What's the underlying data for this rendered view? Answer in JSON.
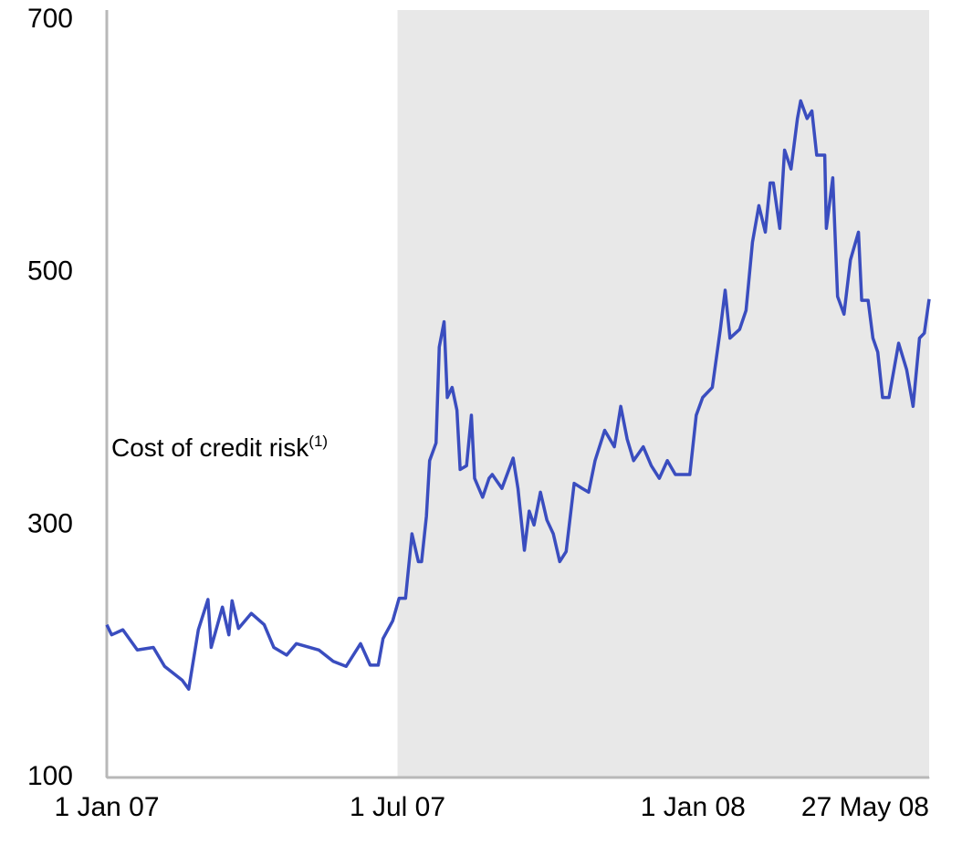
{
  "chart_data": {
    "type": "line",
    "annotation": {
      "text": "Cost of credit risk",
      "superscript": "(1)"
    },
    "x": [
      "2007-01-01",
      "2007-01-04",
      "2007-01-11",
      "2007-01-20",
      "2007-01-30",
      "2007-02-06",
      "2007-02-17",
      "2007-02-21",
      "2007-02-27",
      "2007-03-05",
      "2007-03-07",
      "2007-03-14",
      "2007-03-18",
      "2007-03-20",
      "2007-03-24",
      "2007-04-01",
      "2007-04-09",
      "2007-04-15",
      "2007-04-23",
      "2007-04-29",
      "2007-05-13",
      "2007-05-22",
      "2007-05-30",
      "2007-06-08",
      "2007-06-14",
      "2007-06-19",
      "2007-06-22",
      "2007-06-28",
      "2007-07-02",
      "2007-07-06",
      "2007-07-10",
      "2007-07-14",
      "2007-07-16",
      "2007-07-19",
      "2007-07-21",
      "2007-07-25",
      "2007-07-27",
      "2007-07-30",
      "2007-08-01",
      "2007-08-04",
      "2007-08-07",
      "2007-08-09",
      "2007-08-13",
      "2007-08-16",
      "2007-08-18",
      "2007-08-23",
      "2007-08-27",
      "2007-08-29",
      "2007-09-04",
      "2007-09-11",
      "2007-09-14",
      "2007-09-18",
      "2007-09-21",
      "2007-09-24",
      "2007-09-28",
      "2007-10-02",
      "2007-10-06",
      "2007-10-10",
      "2007-10-14",
      "2007-10-19",
      "2007-10-24",
      "2007-10-28",
      "2007-11-01",
      "2007-11-07",
      "2007-11-13",
      "2007-11-17",
      "2007-11-21",
      "2007-11-25",
      "2007-12-01",
      "2007-12-06",
      "2007-12-11",
      "2007-12-16",
      "2007-12-21",
      "2007-12-30",
      "2008-01-03",
      "2008-01-07",
      "2008-01-13",
      "2008-01-18",
      "2008-01-21",
      "2008-01-24",
      "2008-01-30",
      "2008-02-03",
      "2008-02-07",
      "2008-02-11",
      "2008-02-15",
      "2008-02-18",
      "2008-02-20",
      "2008-02-24",
      "2008-02-27",
      "2008-03-02",
      "2008-03-06",
      "2008-03-08",
      "2008-03-12",
      "2008-03-15",
      "2008-03-18",
      "2008-03-23",
      "2008-03-24",
      "2008-03-28",
      "2008-03-31",
      "2008-04-04",
      "2008-04-08",
      "2008-04-13",
      "2008-04-15",
      "2008-04-19",
      "2008-04-22",
      "2008-04-25",
      "2008-04-28",
      "2008-05-02",
      "2008-05-08",
      "2008-05-13",
      "2008-05-17",
      "2008-05-21",
      "2008-05-24",
      "2008-05-27"
    ],
    "series": [
      {
        "name": "Cost of credit risk",
        "color": "#3a4dbf",
        "values": [
          221,
          213,
          217,
          201,
          203,
          188,
          177,
          170,
          217,
          241,
          203,
          235,
          213,
          240,
          218,
          230,
          221,
          203,
          197,
          206,
          201,
          192,
          188,
          206,
          189,
          189,
          210,
          224,
          242,
          242,
          293,
          271,
          271,
          307,
          351,
          365,
          441,
          461,
          401,
          409,
          391,
          344,
          347,
          387,
          337,
          322,
          337,
          340,
          329,
          353,
          329,
          280,
          311,
          300,
          326,
          304,
          293,
          271,
          279,
          333,
          329,
          326,
          351,
          375,
          362,
          394,
          368,
          351,
          362,
          347,
          337,
          351,
          340,
          340,
          387,
          401,
          409,
          455,
          486,
          448,
          455,
          470,
          524,
          553,
          532,
          571,
          571,
          535,
          597,
          582,
          622,
          636,
          622,
          628,
          593,
          593,
          535,
          575,
          481,
          467,
          510,
          532,
          478,
          478,
          448,
          437,
          401,
          401,
          444,
          423,
          394,
          448,
          452,
          479
        ]
      }
    ],
    "xlim": [
      "2007-01-01",
      "2008-05-27"
    ],
    "xticks": [
      {
        "value": "2007-01-01",
        "label": "1 Jan 07"
      },
      {
        "value": "2007-07-01",
        "label": "1 Jul 07"
      },
      {
        "value": "2008-01-01",
        "label": "1 Jan 08"
      },
      {
        "value": "2008-05-27",
        "label": "27 May 08"
      }
    ],
    "ylim": [
      100,
      700
    ],
    "yticks": [
      100,
      300,
      500,
      700
    ],
    "shaded_from": "2007-07-01",
    "shade_color": "#e8e8e8",
    "grid": false
  }
}
